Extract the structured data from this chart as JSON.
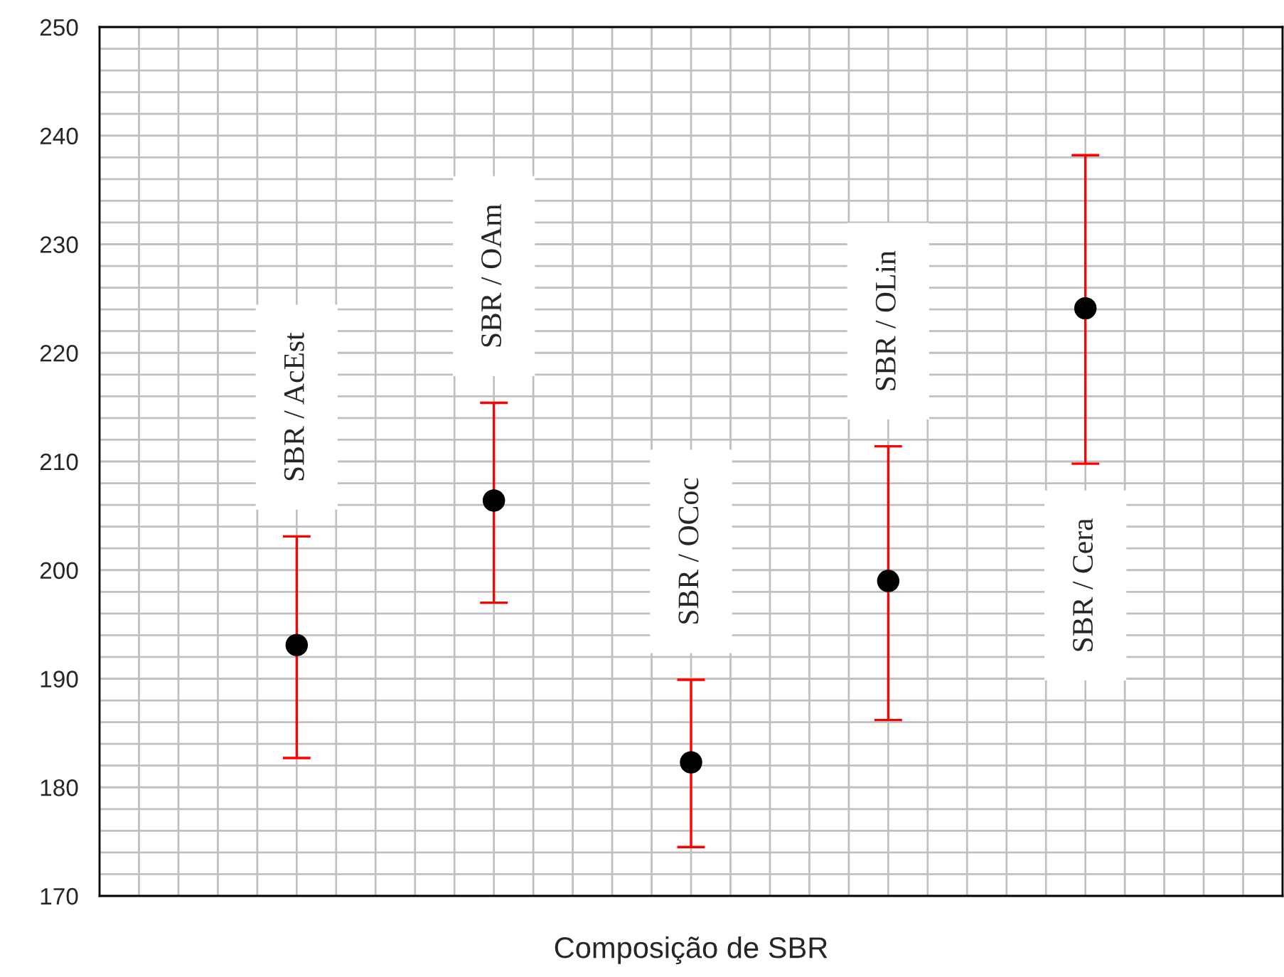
{
  "chart_data": {
    "type": "scatter",
    "xlabel": "Composição de SBR",
    "categories": [
      null,
      null,
      null,
      null,
      null
    ],
    "series": [
      {
        "color": "#000000",
        "values": [
          193.1,
          206.4,
          182.3,
          199.0,
          224.1
        ],
        "errors": [
          [
            182.7,
            203.1
          ],
          [
            197.0,
            215.4
          ],
          [
            174.5,
            189.9
          ],
          [
            186.2,
            211.4
          ],
          [
            209.8,
            238.2
          ]
        ]
      }
    ],
    "ylim": [
      170,
      250
    ],
    "yticks": [
      170,
      180,
      190,
      200,
      210,
      220,
      230,
      240,
      250
    ],
    "grid": true,
    "marker": "circle",
    "annotations": [
      "SBR / AcEst",
      "SBR / OAm",
      "SBR / OCoc",
      "SBR / OLin",
      "SBR / Cera"
    ]
  }
}
